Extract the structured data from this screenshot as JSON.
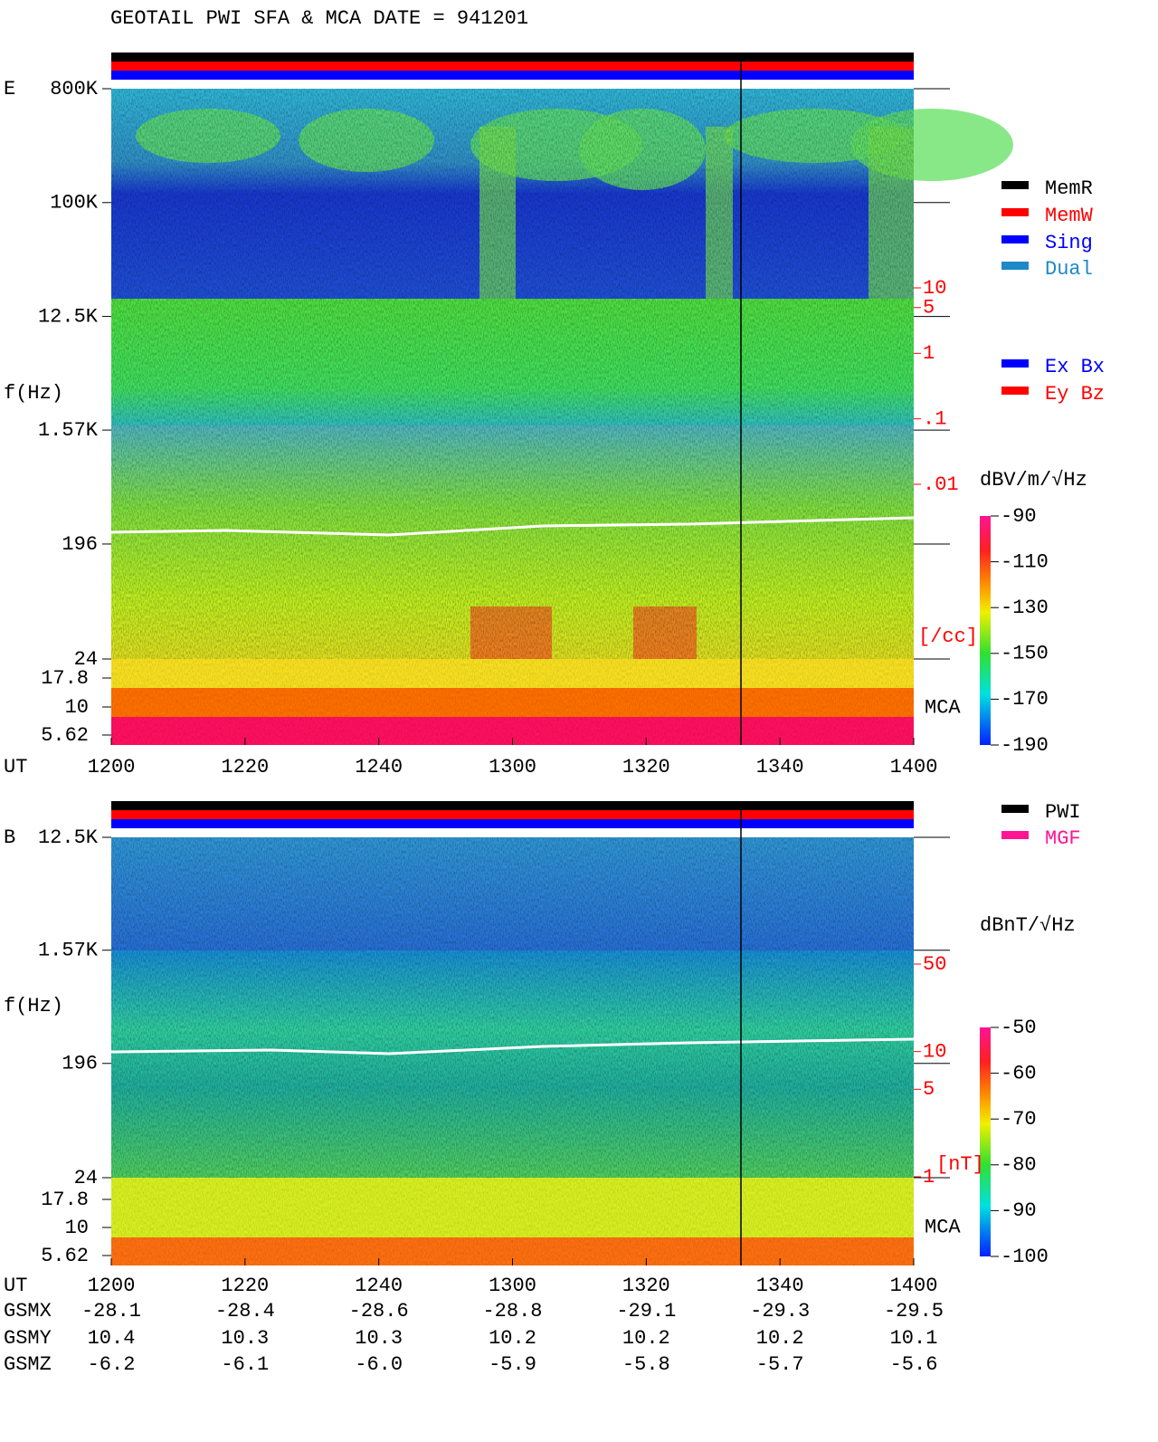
{
  "title": "GEOTAIL  PWI SFA & MCA   DATE = 941201",
  "legends": [
    [
      {
        "name": "MemR",
        "color": "#000000"
      },
      {
        "name": "MemW",
        "color": "#ff0000"
      },
      {
        "name": "Sing",
        "color": "#0000ff"
      },
      {
        "name": "Dual",
        "color": "#1e88c8"
      }
    ],
    [
      {
        "name": "Ex Bx",
        "color": "#0000ff"
      },
      {
        "name": "Ey Bz",
        "color": "#ff0000"
      }
    ],
    [
      {
        "name": "PWI",
        "color": "#000000"
      },
      {
        "name": "MGF",
        "color": "#ff1493"
      }
    ]
  ],
  "chart_data": [
    {
      "type": "spectrogram",
      "panel_label": "E",
      "ylabel": "f(Hz)",
      "log_scale": true,
      "ylim": [
        24,
        800000
      ],
      "yticks": [
        {
          "value": 800000,
          "label": "800K"
        },
        {
          "value": 100000,
          "label": "100K"
        },
        {
          "value": 12500,
          "label": "12.5K"
        },
        {
          "value": 1570,
          "label": "1.57K"
        },
        196,
        24
      ],
      "mca_label": "MCA",
      "mca_ticks": [
        17.8,
        10,
        5.62
      ],
      "xlabel": "UT",
      "categories": [
        "1200",
        "1220",
        "1240",
        "1300",
        "1320",
        "1340",
        "1400"
      ],
      "colorbar": {
        "label": "dBV/m/√Hz",
        "clim": [
          -190,
          -90
        ],
        "ticks": [
          -90,
          -110,
          -130,
          -150,
          -170,
          -190
        ]
      },
      "density": {
        "lim": [
          0.01,
          10
        ],
        "ticks": [
          10,
          5,
          1,
          {
            "value": 0.1,
            "label": ".1"
          },
          {
            "value": 0.01,
            "label": ".01"
          }
        ],
        "unit": "[/cc]"
      }
    },
    {
      "type": "spectrogram",
      "panel_label": "B",
      "ylabel": "f(Hz)",
      "log_scale": true,
      "ylim": [
        24,
        12500
      ],
      "yticks": [
        {
          "value": 12500,
          "label": "12.5K"
        },
        {
          "value": 1570,
          "label": "1.57K"
        },
        196,
        24
      ],
      "mca_label": "MCA",
      "mca_ticks": [
        17.8,
        10,
        5.62
      ],
      "xlabel": "UT",
      "categories": [
        "1200",
        "1220",
        "1240",
        "1300",
        "1320",
        "1340",
        "1400"
      ],
      "colorbar": {
        "label": "dBnT/√Hz",
        "clim": [
          -100,
          -50
        ],
        "ticks": [
          -50,
          -60,
          -70,
          -80,
          -90,
          -100
        ]
      },
      "density": {
        "lim": [
          1,
          50
        ],
        "ticks": [
          50,
          10,
          5,
          1
        ],
        "unit": "[nT]"
      }
    }
  ],
  "orbit": [
    {
      "name": "GSMX",
      "values": [
        -28.1,
        -28.4,
        -28.6,
        -28.8,
        -29.1,
        -29.3,
        -29.5
      ]
    },
    {
      "name": "GSMY",
      "values": [
        10.4,
        10.3,
        10.3,
        10.2,
        10.2,
        10.2,
        10.1
      ]
    },
    {
      "name": "GSMZ",
      "values": [
        -6.2,
        -6.1,
        {
          "value": -6,
          "label": "-6.0"
        },
        -5.9,
        -5.8,
        -5.7,
        -5.6
      ]
    }
  ]
}
